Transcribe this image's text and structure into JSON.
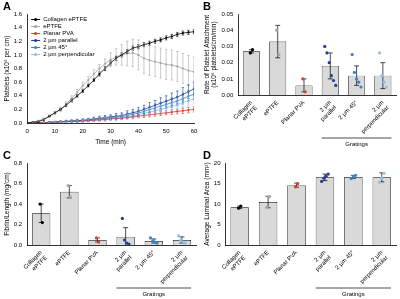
{
  "chart_data": [
    {
      "type": "line",
      "title": "A",
      "x_label": "Time (min)",
      "y_label": "Platelets (x10⁶ per cm)",
      "x": [
        0,
        2,
        4,
        6,
        8,
        10,
        12,
        14,
        16,
        18,
        20,
        22,
        24,
        26,
        28,
        30,
        32,
        34,
        36,
        38,
        40,
        42,
        44,
        46,
        48,
        50,
        52,
        54,
        56,
        58,
        60
      ],
      "xlim": [
        0,
        60
      ],
      "xticks": [
        0,
        10,
        20,
        30,
        40,
        50,
        60
      ],
      "ylim": [
        0,
        1.6
      ],
      "yticks": [
        {
          "value": 0,
          "label": "0.0"
        },
        {
          "value": 0.2,
          "label": "0.2"
        },
        {
          "value": 0.4,
          "label": "0.4"
        },
        {
          "value": 0.6,
          "label": "0.6"
        },
        {
          "value": 0.8,
          "label": "0.8"
        },
        {
          "value": 1,
          "label": "1.0"
        },
        {
          "value": 1.2,
          "label": "1.2"
        },
        {
          "value": 1.4,
          "label": "1.4"
        },
        {
          "value": 1.6,
          "label": "1.6"
        }
      ],
      "grid": false,
      "legend": "top-left",
      "series": [
        {
          "name": "Collagen ePTFE",
          "color": "#000000",
          "marker": "circle",
          "values": [
            0,
            0.01,
            0.02,
            0.05,
            0.1,
            0.15,
            0.2,
            0.26,
            0.33,
            0.4,
            0.47,
            0.55,
            0.63,
            0.72,
            0.8,
            0.88,
            0.95,
            1.0,
            1.05,
            1.1,
            1.12,
            1.15,
            1.17,
            1.2,
            1.22,
            1.25,
            1.27,
            1.3,
            1.32,
            1.33,
            1.34
          ],
          "errors": [
            0,
            0.005,
            0.01,
            0.01,
            0.01,
            0.015,
            0.015,
            0.02,
            0.02,
            0.02,
            0.02,
            0.02,
            0.02,
            0.03,
            0.03,
            0.03,
            0.03,
            0.03,
            0.03,
            0.03,
            0.03,
            0.03,
            0.03,
            0.03,
            0.03,
            0.03,
            0.03,
            0.03,
            0.03,
            0.03,
            0.03
          ]
        },
        {
          "name": "ePTFE",
          "color": "#a6a6a6",
          "marker": "circle",
          "values": [
            0,
            0.01,
            0.03,
            0.06,
            0.1,
            0.15,
            0.2,
            0.28,
            0.36,
            0.45,
            0.55,
            0.63,
            0.72,
            0.8,
            0.87,
            0.93,
            0.97,
            1.0,
            1.02,
            1.03,
            1.0,
            0.95,
            0.92,
            0.9,
            0.88,
            0.86,
            0.85,
            0.83,
            0.8,
            0.77,
            0.75
          ],
          "errors": [
            0,
            0.005,
            0.01,
            0.01,
            0.02,
            0.02,
            0.03,
            0.03,
            0.04,
            0.04,
            0.05,
            0.05,
            0.06,
            0.06,
            0.07,
            0.1,
            0.12,
            0.15,
            0.18,
            0.2,
            0.22,
            0.22,
            0.22,
            0.22,
            0.22,
            0.22,
            0.22,
            0.22,
            0.22,
            0.22,
            0.22
          ]
        },
        {
          "name": "Planar PVA",
          "color": "#e8392b",
          "marker": "circle",
          "values": [
            0,
            0,
            0,
            0.005,
            0.01,
            0.01,
            0.015,
            0.02,
            0.02,
            0.025,
            0.03,
            0.035,
            0.04,
            0.045,
            0.05,
            0.06,
            0.065,
            0.07,
            0.08,
            0.09,
            0.1,
            0.11,
            0.12,
            0.13,
            0.14,
            0.15,
            0.16,
            0.17,
            0.18,
            0.19,
            0.2
          ],
          "errors": [
            0,
            0,
            0,
            0.005,
            0.005,
            0.005,
            0.01,
            0.01,
            0.01,
            0.01,
            0.01,
            0.015,
            0.015,
            0.015,
            0.02,
            0.02,
            0.02,
            0.02,
            0.02,
            0.025,
            0.025,
            0.03,
            0.03,
            0.03,
            0.03,
            0.03,
            0.035,
            0.035,
            0.04,
            0.04,
            0.04
          ]
        },
        {
          "name": "2 µm parallel",
          "color": "#1f3f8f",
          "marker": "circle",
          "values": [
            0,
            0,
            0,
            0.005,
            0.01,
            0.015,
            0.02,
            0.025,
            0.03,
            0.035,
            0.04,
            0.05,
            0.06,
            0.07,
            0.08,
            0.09,
            0.1,
            0.11,
            0.13,
            0.15,
            0.17,
            0.2,
            0.23,
            0.26,
            0.29,
            0.32,
            0.35,
            0.38,
            0.42,
            0.46,
            0.5
          ],
          "errors": [
            0,
            0,
            0,
            0.005,
            0.01,
            0.01,
            0.01,
            0.015,
            0.015,
            0.02,
            0.02,
            0.02,
            0.025,
            0.03,
            0.03,
            0.03,
            0.04,
            0.04,
            0.05,
            0.05,
            0.06,
            0.06,
            0.07,
            0.07,
            0.08,
            0.08,
            0.09,
            0.09,
            0.1,
            0.1,
            0.1
          ]
        },
        {
          "name": "2 µm 45°",
          "color": "#3d7fd1",
          "marker": "circle",
          "values": [
            0,
            0,
            0,
            0.004,
            0.008,
            0.013,
            0.017,
            0.021,
            0.026,
            0.03,
            0.034,
            0.043,
            0.051,
            0.06,
            0.068,
            0.077,
            0.085,
            0.094,
            0.11,
            0.128,
            0.145,
            0.17,
            0.196,
            0.221,
            0.247,
            0.272,
            0.298,
            0.323,
            0.357,
            0.391,
            0.425
          ],
          "errors": [
            0,
            0,
            0,
            0.005,
            0.01,
            0.01,
            0.01,
            0.01,
            0.015,
            0.015,
            0.02,
            0.02,
            0.02,
            0.025,
            0.025,
            0.03,
            0.03,
            0.035,
            0.04,
            0.04,
            0.05,
            0.05,
            0.05,
            0.06,
            0.06,
            0.06,
            0.07,
            0.07,
            0.08,
            0.08,
            0.08
          ]
        },
        {
          "name": "2 µm perpendicular",
          "color": "#8fc1ea",
          "marker": "circle",
          "values": [
            0,
            0,
            0,
            0.003,
            0.007,
            0.01,
            0.014,
            0.017,
            0.02,
            0.024,
            0.028,
            0.035,
            0.042,
            0.049,
            0.056,
            0.063,
            0.07,
            0.077,
            0.09,
            0.1,
            0.12,
            0.14,
            0.16,
            0.18,
            0.2,
            0.22,
            0.25,
            0.27,
            0.3,
            0.33,
            0.35
          ],
          "errors": [
            0,
            0,
            0,
            0.005,
            0.005,
            0.01,
            0.01,
            0.01,
            0.01,
            0.015,
            0.015,
            0.02,
            0.02,
            0.02,
            0.025,
            0.025,
            0.03,
            0.03,
            0.035,
            0.04,
            0.04,
            0.045,
            0.05,
            0.05,
            0.055,
            0.06,
            0.06,
            0.065,
            0.07,
            0.07,
            0.07
          ]
        }
      ]
    },
    {
      "type": "bar",
      "title": "B",
      "y_label": "Rate of Platelet Attachment (x10⁶ platelets/cm/min)",
      "categories": [
        "Collagen ePTFE",
        "ePTFE",
        "Planar PVA",
        "2 µm parallel",
        "2 µm 45°",
        "2 µm perpendicular"
      ],
      "group": {
        "label": "Gratings",
        "categories": [
          "2 µm parallel",
          "2 µm 45°",
          "2 µm perpendicular"
        ]
      },
      "values": [
        0.027,
        0.033,
        0.006,
        0.018,
        0.012,
        0.012
      ],
      "errors": [
        0.001,
        0.01,
        0.004,
        0.008,
        0.006,
        0.008
      ],
      "points": [
        [
          0.026,
          0.028
        ],
        [
          0.04,
          0.025
        ],
        [
          0.01,
          0.002
        ],
        [
          0.03,
          0.026,
          0.02,
          0.012,
          0.009,
          0.006
        ],
        [
          0.025,
          0.014,
          0.01,
          0.008,
          0.005
        ],
        [
          0.026,
          0.012,
          0.008,
          0.005
        ]
      ],
      "color": "#d9d9d9",
      "colors": [
        "#000000",
        "#a6a6a6",
        "#e8392b",
        "#1f3f8f",
        "#3d7fd1",
        "#8fc1ea"
      ],
      "ylim": [
        0,
        0.05
      ],
      "yticks": [
        {
          "value": 0,
          "label": "0.00"
        },
        {
          "value": 0.01,
          "label": "0.01"
        },
        {
          "value": 0.02,
          "label": "0.02"
        },
        {
          "value": 0.03,
          "label": "0.03"
        },
        {
          "value": 0.04,
          "label": "0.04"
        },
        {
          "value": 0.05,
          "label": "0.05"
        }
      ],
      "grid": false
    },
    {
      "type": "bar",
      "title": "C",
      "y_label": "Fibrin/Length (mg/cm)",
      "categories": [
        "Collagen ePTFE",
        "ePTFE",
        "Planar PVA",
        "2 µm parallel",
        "2 µm 45°",
        "2 µm perpendicular"
      ],
      "group": {
        "label": "Gratings",
        "categories": [
          "2 µm parallel",
          "2 µm 45°",
          "2 µm perpendicular"
        ]
      },
      "values": [
        0.31,
        0.52,
        0.05,
        0.08,
        0.04,
        0.05
      ],
      "errors": [
        0.09,
        0.06,
        0.02,
        0.09,
        0.02,
        0.03
      ],
      "points": [
        [
          0.4,
          0.22
        ],
        [
          0.58,
          0.47
        ],
        [
          0.07,
          0.03
        ],
        [
          0.26,
          0.05,
          0.02,
          0.01
        ],
        [
          0.07,
          0.04,
          0.03,
          0.02
        ],
        [
          0.09,
          0.05,
          0.03,
          0.02
        ]
      ],
      "color": "#d9d9d9",
      "colors": [
        "#000000",
        "#a6a6a6",
        "#e8392b",
        "#1f3f8f",
        "#3d7fd1",
        "#8fc1ea"
      ],
      "ylim": [
        0,
        0.8
      ],
      "yticks": [
        {
          "value": 0,
          "label": "0.0"
        },
        {
          "value": 0.2,
          "label": "0.2"
        },
        {
          "value": 0.4,
          "label": "0.4"
        },
        {
          "value": 0.6,
          "label": "0.6"
        },
        {
          "value": 0.8,
          "label": "0.8"
        }
      ],
      "grid": false
    },
    {
      "type": "bar",
      "title": "D",
      "y_label": "Average Luminal Area (mm²)",
      "categories": [
        "Collagen ePTFE",
        "ePTFE",
        "Planar PVA",
        "2 µm parallel",
        "2 µm 45°",
        "2 µm perpendicular"
      ],
      "group": {
        "label": "Gratings",
        "categories": [
          "2 µm parallel",
          "2 µm 45°",
          "2 µm perpendicular"
        ]
      },
      "values": [
        9.2,
        10.5,
        14.6,
        16.5,
        16.6,
        16.5
      ],
      "errors": [
        0.3,
        1.4,
        0.5,
        0.8,
        0.4,
        1.1
      ],
      "points": [
        [
          9.0,
          9.5
        ],
        [
          9.2,
          11.8
        ],
        [
          14.2,
          15.0
        ],
        [
          15.5,
          16.3,
          16.8,
          17.3
        ],
        [
          16.2,
          16.6,
          17.0
        ],
        [
          15.3,
          16.3,
          17.5
        ]
      ],
      "color": "#d9d9d9",
      "colors": [
        "#000000",
        "#a6a6a6",
        "#e8392b",
        "#1f3f8f",
        "#3d7fd1",
        "#8fc1ea"
      ],
      "ylim": [
        0,
        20
      ],
      "yticks": [
        0,
        5,
        10,
        15,
        20
      ],
      "grid": false
    }
  ]
}
